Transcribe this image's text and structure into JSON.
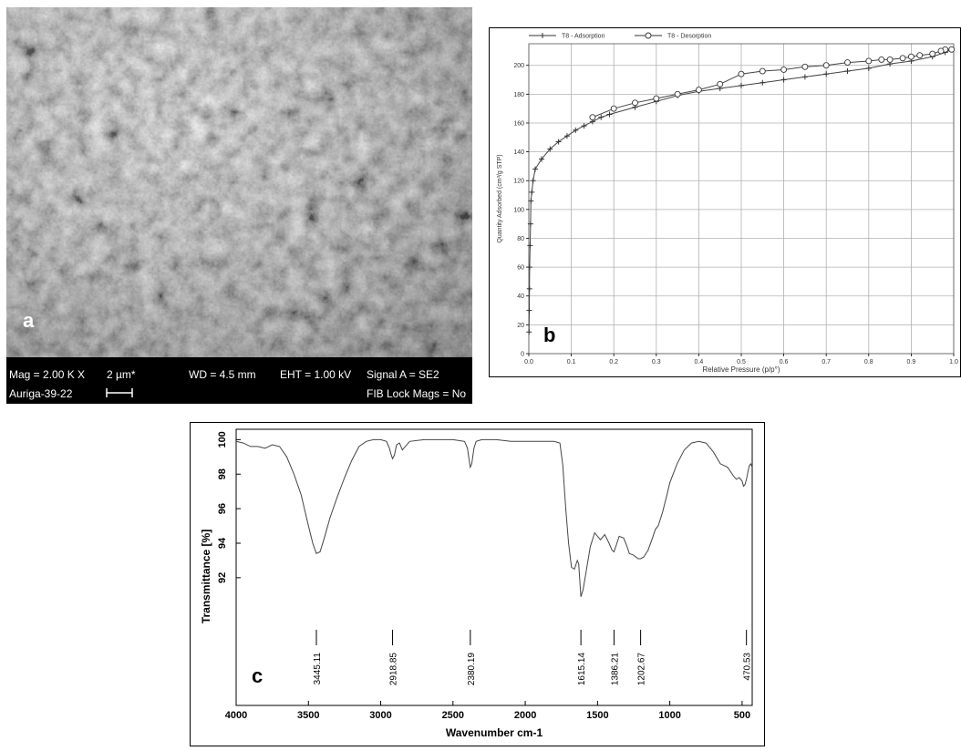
{
  "panels": {
    "a": {
      "label": "a",
      "info": {
        "mag": "Mag =  2.00 K X",
        "scale": "2 µm*",
        "wd": "WD = 4.5 mm",
        "eht": "EHT =  1.00 kV",
        "signal": "Signal A = SE2",
        "instrument": "Auriga-39-22",
        "fib": "FIB Lock Mags = No"
      }
    },
    "b": {
      "label": "b"
    },
    "c": {
      "label": "c"
    }
  },
  "colors": {
    "plot_line": "#444444",
    "grid": "#b0b0b0",
    "sem_bar": "#000000"
  },
  "chart_data": [
    {
      "type": "line",
      "title": "",
      "xlabel": "Relative Pressure (p/p°)",
      "ylabel": "Quantity Adsorbed (cm³/g STP)",
      "xlim": [
        0,
        1.0
      ],
      "ylim": [
        0,
        215
      ],
      "xticks": [
        "0.0",
        "0.1",
        "0.2",
        "0.3",
        "0.4",
        "0.5",
        "0.6",
        "0.7",
        "0.8",
        "0.9",
        "1.0"
      ],
      "yticks": [
        "0",
        "20",
        "40",
        "60",
        "80",
        "100",
        "120",
        "140",
        "160",
        "180",
        "200"
      ],
      "grid": true,
      "legend": "top-left",
      "series": [
        {
          "name": "T8 - Adsorption",
          "marker": "plus",
          "x": [
            0.0005,
            0.001,
            0.0015,
            0.002,
            0.003,
            0.004,
            0.005,
            0.007,
            0.01,
            0.015,
            0.03,
            0.05,
            0.07,
            0.09,
            0.11,
            0.13,
            0.15,
            0.17,
            0.19,
            0.25,
            0.3,
            0.35,
            0.4,
            0.45,
            0.5,
            0.55,
            0.6,
            0.65,
            0.7,
            0.75,
            0.8,
            0.85,
            0.9,
            0.95,
            0.98,
            0.995
          ],
          "y": [
            15,
            30,
            45,
            60,
            75,
            90,
            106,
            112,
            120,
            128,
            135,
            142,
            147,
            151,
            155,
            158,
            161,
            164,
            166,
            171,
            175,
            179,
            182,
            184,
            186,
            188,
            190,
            192,
            194,
            196,
            198,
            201,
            203,
            206,
            209,
            211
          ]
        },
        {
          "name": "T8 - Desorption",
          "marker": "circle",
          "x": [
            0.995,
            0.98,
            0.97,
            0.95,
            0.92,
            0.9,
            0.88,
            0.85,
            0.83,
            0.8,
            0.75,
            0.7,
            0.65,
            0.6,
            0.55,
            0.5,
            0.45,
            0.4,
            0.35,
            0.3,
            0.25,
            0.2,
            0.15
          ],
          "y": [
            211,
            211,
            210,
            208,
            207,
            206,
            205,
            204,
            204,
            203,
            202,
            200,
            199,
            197,
            196,
            194,
            187,
            183,
            180,
            177,
            174,
            170,
            164
          ]
        }
      ]
    },
    {
      "type": "line",
      "title": "",
      "xlabel": "Wavenumber cm-1",
      "ylabel": "Transmittance [%]",
      "xlim": [
        4000,
        430
      ],
      "ylim": [
        84.6,
        100.6
      ],
      "xticks": [
        "4000",
        "3500",
        "3000",
        "2500",
        "2000",
        "1500",
        "1000",
        "500"
      ],
      "yticks": [
        "92",
        "94",
        "96",
        "98",
        "100"
      ],
      "grid": false,
      "series": [
        {
          "x": [
            4000,
            3950,
            3900,
            3850,
            3800,
            3750,
            3700,
            3650,
            3600,
            3550,
            3500,
            3470,
            3445,
            3420,
            3390,
            3350,
            3300,
            3250,
            3200,
            3150,
            3100,
            3050,
            3000,
            2960,
            2940,
            2930,
            2918,
            2905,
            2890,
            2870,
            2850,
            2800,
            2700,
            2600,
            2500,
            2420,
            2400,
            2390,
            2380,
            2370,
            2355,
            2340,
            2300,
            2200,
            2100,
            2000,
            1900,
            1800,
            1760,
            1740,
            1720,
            1700,
            1680,
            1660,
            1640,
            1630,
            1615,
            1600,
            1580,
            1550,
            1520,
            1500,
            1480,
            1450,
            1420,
            1400,
            1386,
            1370,
            1350,
            1320,
            1300,
            1280,
            1250,
            1220,
            1202,
            1180,
            1150,
            1120,
            1100,
            1080,
            1050,
            1020,
            1000,
            950,
            900,
            850,
            800,
            750,
            700,
            650,
            600,
            560,
            540,
            520,
            500,
            490,
            480,
            470,
            460,
            450,
            440,
            430
          ],
          "y": [
            99.9,
            99.8,
            99.6,
            99.6,
            99.5,
            99.7,
            99.6,
            99.0,
            98.0,
            96.8,
            95.0,
            94.0,
            93.4,
            93.5,
            94.3,
            95.5,
            96.7,
            97.8,
            98.8,
            99.6,
            99.9,
            100.0,
            100.0,
            99.9,
            99.5,
            99.2,
            98.9,
            99.1,
            99.7,
            99.8,
            99.4,
            99.9,
            100.0,
            100.0,
            100.0,
            99.9,
            99.5,
            98.9,
            98.4,
            98.6,
            99.5,
            99.9,
            100.0,
            100.0,
            99.9,
            99.9,
            99.9,
            99.9,
            99.8,
            98.5,
            96.0,
            94.0,
            92.6,
            92.5,
            93.0,
            92.8,
            90.9,
            91.3,
            92.3,
            93.8,
            94.6,
            94.4,
            94.2,
            94.5,
            94.0,
            93.6,
            93.5,
            93.9,
            94.4,
            94.3,
            93.9,
            93.4,
            93.3,
            93.1,
            93.1,
            93.2,
            93.6,
            94.3,
            94.8,
            95.0,
            95.8,
            96.8,
            97.5,
            98.6,
            99.4,
            99.8,
            99.9,
            99.8,
            99.3,
            98.6,
            98.4,
            97.9,
            97.7,
            97.8,
            97.6,
            97.3,
            97.4,
            97.7,
            98.1,
            98.5,
            98.6,
            98.4
          ]
        }
      ],
      "annotations": [
        {
          "x": 3445,
          "label": "3445.11"
        },
        {
          "x": 2918,
          "label": "2918.85"
        },
        {
          "x": 2380,
          "label": "2380.19"
        },
        {
          "x": 1615,
          "label": "1615.14"
        },
        {
          "x": 1386,
          "label": "1386.21"
        },
        {
          "x": 1202,
          "label": "1202.67"
        },
        {
          "x": 470,
          "label": "470.53"
        }
      ]
    }
  ]
}
